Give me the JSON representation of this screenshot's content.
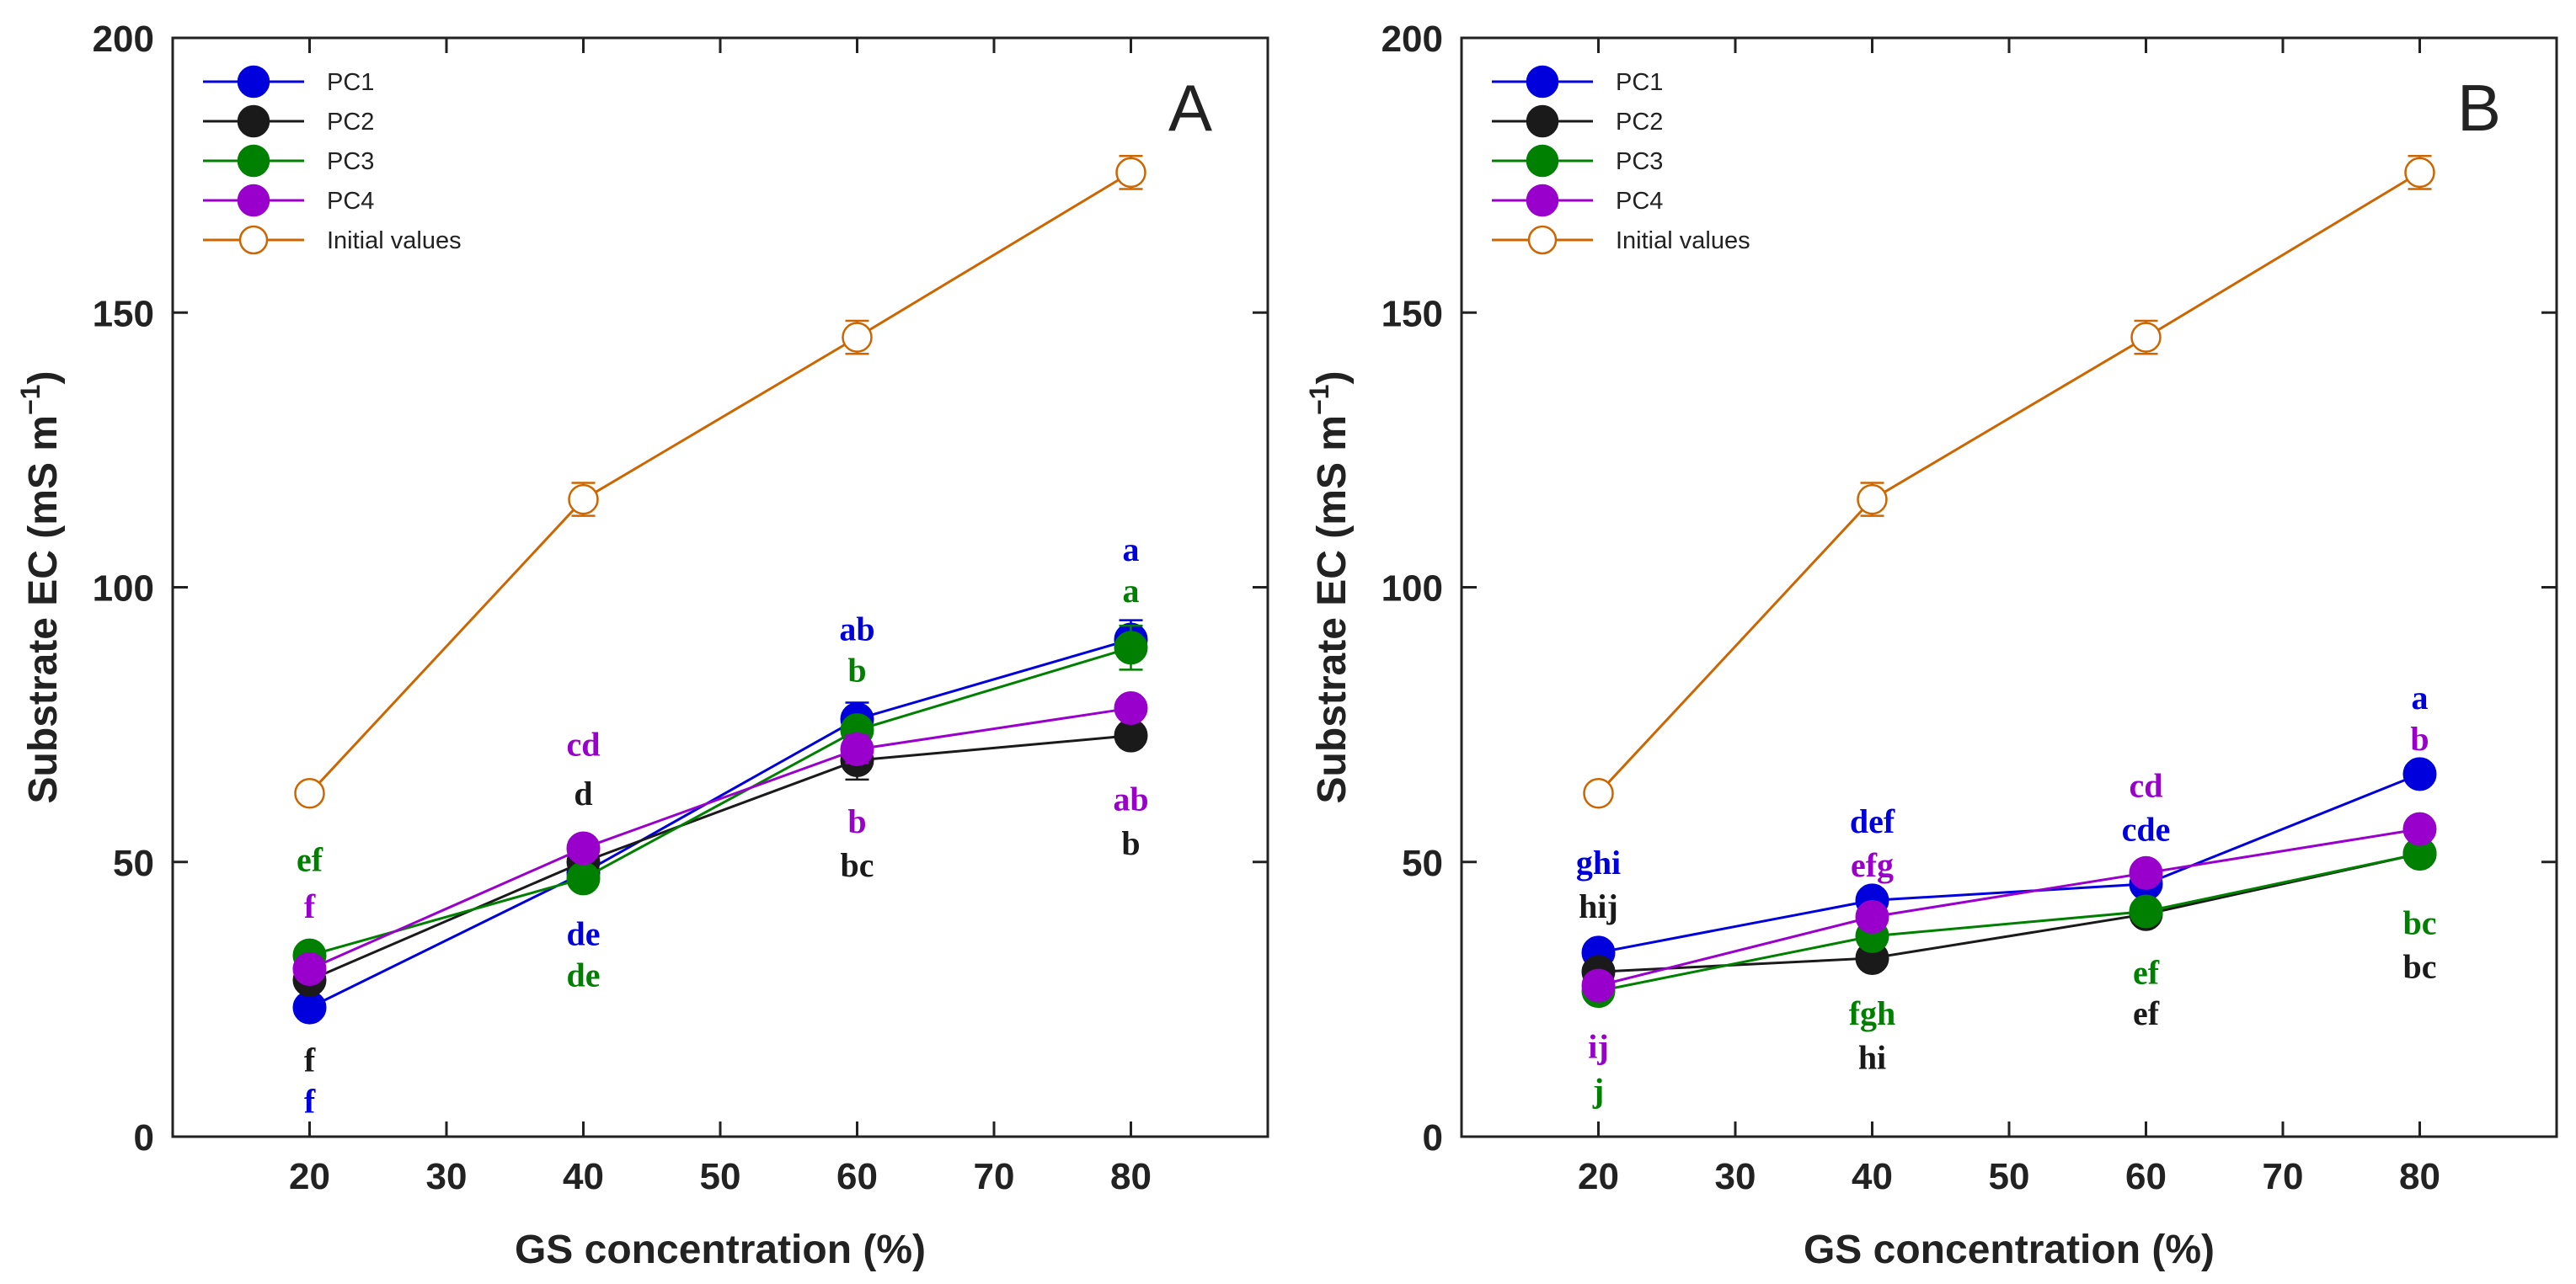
{
  "chart_data": [
    {
      "type": "line",
      "panel_label": "A",
      "xlabel": "GS concentration (%)",
      "ylabel_main": "Substrate EC (mS m",
      "ylabel_sup": "−1",
      "ylabel_close": ")",
      "xlim": [
        10,
        90
      ],
      "ylim": [
        0,
        200
      ],
      "xticks": [
        20,
        30,
        40,
        50,
        60,
        70,
        80
      ],
      "xtick_labels": [
        "20",
        "30",
        "40",
        "50",
        "60",
        "70",
        "80"
      ],
      "yticks": [
        0,
        50,
        100,
        150,
        200
      ],
      "ytick_labels": [
        "0",
        "50",
        "100",
        "150",
        "200"
      ],
      "legend_position": "top-left",
      "x": [
        20,
        40,
        60,
        80
      ],
      "series": [
        {
          "name": "PC1",
          "color": "#0000dd",
          "marker": "filled",
          "values": [
            23.5,
            48,
            76,
            90.5
          ],
          "err": [
            0,
            1.5,
            3,
            3.5
          ]
        },
        {
          "name": "PC2",
          "color": "#1a1a1a",
          "marker": "filled",
          "values": [
            28.5,
            50,
            68.5,
            73
          ],
          "err": [
            0,
            2,
            3.5,
            2
          ]
        },
        {
          "name": "PC3",
          "color": "#008000",
          "marker": "filled",
          "values": [
            33,
            47,
            74,
            89
          ],
          "err": [
            0,
            1.5,
            2,
            4
          ]
        },
        {
          "name": "PC4",
          "color": "#9900cc",
          "marker": "filled",
          "values": [
            30.5,
            52.5,
            70.5,
            78
          ],
          "err": [
            0,
            1.5,
            2.5,
            2
          ]
        },
        {
          "name": "Initial values",
          "color": "#cc6600",
          "marker": "open",
          "values": [
            62.5,
            116,
            145.5,
            175.5
          ],
          "err": [
            1,
            3,
            3,
            3
          ]
        }
      ],
      "annotations": [
        {
          "text": "ef",
          "x": 20,
          "y": 50.5,
          "color": "#008000"
        },
        {
          "text": "f",
          "x": 20,
          "y": 42,
          "color": "#9900cc"
        },
        {
          "text": "f",
          "x": 20,
          "y": 14,
          "color": "#1a1a1a"
        },
        {
          "text": "f",
          "x": 20,
          "y": 6.5,
          "color": "#0000dd"
        },
        {
          "text": "cd",
          "x": 40,
          "y": 71.5,
          "color": "#9900cc"
        },
        {
          "text": "d",
          "x": 40,
          "y": 62.5,
          "color": "#1a1a1a"
        },
        {
          "text": "de",
          "x": 40,
          "y": 37,
          "color": "#0000dd"
        },
        {
          "text": "de",
          "x": 40,
          "y": 29.5,
          "color": "#008000"
        },
        {
          "text": "ab",
          "x": 60,
          "y": 92.5,
          "color": "#0000dd"
        },
        {
          "text": "b",
          "x": 60,
          "y": 85,
          "color": "#008000"
        },
        {
          "text": "b",
          "x": 60,
          "y": 57.5,
          "color": "#9900cc"
        },
        {
          "text": "bc",
          "x": 60,
          "y": 49.5,
          "color": "#1a1a1a"
        },
        {
          "text": "a",
          "x": 80,
          "y": 107,
          "color": "#0000dd"
        },
        {
          "text": "a",
          "x": 80,
          "y": 99.5,
          "color": "#008000"
        },
        {
          "text": "ab",
          "x": 80,
          "y": 61.5,
          "color": "#9900cc"
        },
        {
          "text": "b",
          "x": 80,
          "y": 53.5,
          "color": "#1a1a1a"
        }
      ]
    },
    {
      "type": "line",
      "panel_label": "B",
      "xlabel": "GS concentration (%)",
      "ylabel_main": "Substrate EC (mS m",
      "ylabel_sup": "−1",
      "ylabel_close": ")",
      "xlim": [
        10,
        90
      ],
      "ylim": [
        0,
        200
      ],
      "xticks": [
        20,
        30,
        40,
        50,
        60,
        70,
        80
      ],
      "xtick_labels": [
        "20",
        "30",
        "40",
        "50",
        "60",
        "70",
        "80"
      ],
      "yticks": [
        0,
        50,
        100,
        150,
        200
      ],
      "ytick_labels": [
        "0",
        "50",
        "100",
        "150",
        "200"
      ],
      "legend_position": "top-left",
      "x": [
        20,
        40,
        60,
        80
      ],
      "series": [
        {
          "name": "PC1",
          "color": "#0000dd",
          "marker": "filled",
          "values": [
            33.5,
            43,
            46,
            66
          ],
          "err": [
            0,
            1,
            1.5,
            1.5
          ]
        },
        {
          "name": "PC2",
          "color": "#1a1a1a",
          "marker": "filled",
          "values": [
            30,
            32.5,
            40.5,
            51.5
          ],
          "err": [
            0,
            1,
            1,
            1.5
          ]
        },
        {
          "name": "PC3",
          "color": "#008000",
          "marker": "filled",
          "values": [
            26.5,
            36.5,
            41,
            51.5
          ],
          "err": [
            0,
            1,
            1,
            1.5
          ]
        },
        {
          "name": "PC4",
          "color": "#9900cc",
          "marker": "filled",
          "values": [
            27.5,
            40,
            48,
            56
          ],
          "err": [
            0,
            1,
            1.5,
            1.5
          ]
        },
        {
          "name": "Initial values",
          "color": "#cc6600",
          "marker": "open",
          "values": [
            62.5,
            116,
            145.5,
            175.5
          ],
          "err": [
            1,
            3,
            3,
            3
          ]
        }
      ],
      "annotations": [
        {
          "text": "ghi",
          "x": 20,
          "y": 50,
          "color": "#0000dd"
        },
        {
          "text": "hij",
          "x": 20,
          "y": 42,
          "color": "#1a1a1a"
        },
        {
          "text": "ij",
          "x": 20,
          "y": 16.5,
          "color": "#9900cc"
        },
        {
          "text": "j",
          "x": 20,
          "y": 8.5,
          "color": "#008000"
        },
        {
          "text": "def",
          "x": 40,
          "y": 57.5,
          "color": "#0000dd"
        },
        {
          "text": "efg",
          "x": 40,
          "y": 49.5,
          "color": "#9900cc"
        },
        {
          "text": "fgh",
          "x": 40,
          "y": 22.5,
          "color": "#008000"
        },
        {
          "text": "hi",
          "x": 40,
          "y": 14.5,
          "color": "#1a1a1a"
        },
        {
          "text": "cd",
          "x": 60,
          "y": 64,
          "color": "#9900cc"
        },
        {
          "text": "cde",
          "x": 60,
          "y": 56,
          "color": "#0000dd"
        },
        {
          "text": "ef",
          "x": 60,
          "y": 30,
          "color": "#008000"
        },
        {
          "text": "ef",
          "x": 60,
          "y": 22.5,
          "color": "#1a1a1a"
        },
        {
          "text": "a",
          "x": 80,
          "y": 80,
          "color": "#0000dd"
        },
        {
          "text": "b",
          "x": 80,
          "y": 72.5,
          "color": "#9900cc"
        },
        {
          "text": "bc",
          "x": 80,
          "y": 39,
          "color": "#008000"
        },
        {
          "text": "bc",
          "x": 80,
          "y": 31,
          "color": "#1a1a1a"
        }
      ]
    }
  ]
}
